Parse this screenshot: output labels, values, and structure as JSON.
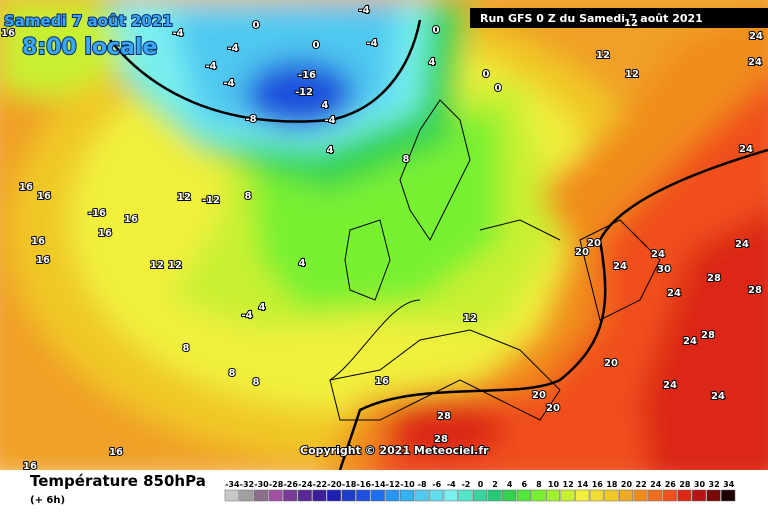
{
  "header": {
    "date": "Samedi 7 août 2021",
    "time": "8:00 locale",
    "run": "Run GFS 0 Z du Samedi 7 août 2021"
  },
  "copyright": "Copyright © 2021 Meteociel.fr",
  "legend": {
    "title": "Température 850hPa",
    "step": "(+ 6h)",
    "scale": [
      {
        "value": -34,
        "color": "#c8c8c8"
      },
      {
        "value": -32,
        "color": "#a0a0a0"
      },
      {
        "value": -30,
        "color": "#8c6e8c"
      },
      {
        "value": -28,
        "color": "#a050a0"
      },
      {
        "value": -26,
        "color": "#783c96"
      },
      {
        "value": -24,
        "color": "#5a2896"
      },
      {
        "value": -22,
        "color": "#3c1e9b"
      },
      {
        "value": -20,
        "color": "#1e1eb4"
      },
      {
        "value": -18,
        "color": "#1e3cc8"
      },
      {
        "value": -16,
        "color": "#1e50dc"
      },
      {
        "value": -14,
        "color": "#1e6ef0"
      },
      {
        "value": -12,
        "color": "#2896f0"
      },
      {
        "value": -10,
        "color": "#32b4f0"
      },
      {
        "value": -8,
        "color": "#50c8f0"
      },
      {
        "value": -6,
        "color": "#64dcf0"
      },
      {
        "value": -4,
        "color": "#78f0f0"
      },
      {
        "value": -2,
        "color": "#50e6c8"
      },
      {
        "value": 0,
        "color": "#3cd2a0"
      },
      {
        "value": 2,
        "color": "#28c878"
      },
      {
        "value": 4,
        "color": "#32d250"
      },
      {
        "value": 6,
        "color": "#50e63c"
      },
      {
        "value": 8,
        "color": "#78f032"
      },
      {
        "value": 10,
        "color": "#a0f032"
      },
      {
        "value": 12,
        "color": "#c8f032"
      },
      {
        "value": 14,
        "color": "#f0f03c"
      },
      {
        "value": 16,
        "color": "#f0dc32"
      },
      {
        "value": 18,
        "color": "#f0c828"
      },
      {
        "value": 20,
        "color": "#f0aa28"
      },
      {
        "value": 22,
        "color": "#f08c1e"
      },
      {
        "value": 24,
        "color": "#f06e1e"
      },
      {
        "value": 26,
        "color": "#f0501e"
      },
      {
        "value": 28,
        "color": "#dc2814"
      },
      {
        "value": 30,
        "color": "#b41414"
      },
      {
        "value": 32,
        "color": "#780a0a"
      },
      {
        "value": 34,
        "color": "#1e0000"
      }
    ]
  },
  "contour_labels": [
    16,
    -4,
    -4,
    0,
    -4,
    -4,
    -4,
    -4,
    -16,
    -12,
    0,
    -8,
    -4,
    4,
    0,
    0,
    0,
    4,
    12,
    12,
    12,
    24,
    24,
    4,
    8,
    8,
    12,
    -12,
    16,
    16,
    -16,
    16,
    16,
    16,
    16,
    12,
    12,
    4,
    4,
    -4,
    8,
    8,
    8,
    16,
    12,
    20,
    20,
    24,
    24,
    30,
    28,
    24,
    28,
    24,
    20,
    20,
    20,
    24,
    24,
    28,
    28,
    16,
    16,
    24,
    24,
    28
  ]
}
